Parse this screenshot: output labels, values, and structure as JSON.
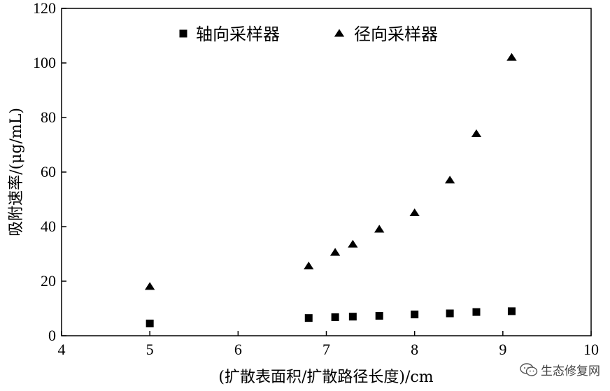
{
  "chart_data": {
    "type": "scatter",
    "xlabel": "(扩散表面积/扩散路径长度)/cm",
    "ylabel": "吸附速率/(μg/mL)",
    "xlim": [
      4,
      10
    ],
    "ylim": [
      0,
      120
    ],
    "xticks": [
      "4",
      "5",
      "6",
      "7",
      "8",
      "9",
      "10"
    ],
    "yticks": [
      "0",
      "20",
      "40",
      "60",
      "80",
      "100",
      "120"
    ],
    "grid": false,
    "legend_position": "top",
    "series": [
      {
        "name": "轴向采样器",
        "marker": "square",
        "color": "#000000",
        "points": [
          [
            5.0,
            4.5
          ],
          [
            6.8,
            6.5
          ],
          [
            7.1,
            6.8
          ],
          [
            7.3,
            7.0
          ],
          [
            7.6,
            7.3
          ],
          [
            8.0,
            7.8
          ],
          [
            8.4,
            8.2
          ],
          [
            8.7,
            8.7
          ],
          [
            9.1,
            9.0
          ]
        ]
      },
      {
        "name": "径向采样器",
        "marker": "triangle",
        "color": "#000000",
        "points": [
          [
            5.0,
            18
          ],
          [
            6.8,
            25.5
          ],
          [
            7.1,
            30.5
          ],
          [
            7.3,
            33.5
          ],
          [
            7.6,
            39
          ],
          [
            8.0,
            45
          ],
          [
            8.4,
            57
          ],
          [
            8.7,
            74
          ],
          [
            9.1,
            102
          ]
        ]
      }
    ]
  },
  "watermark": {
    "text": "生态修复网",
    "icon": "wechat-icon"
  }
}
